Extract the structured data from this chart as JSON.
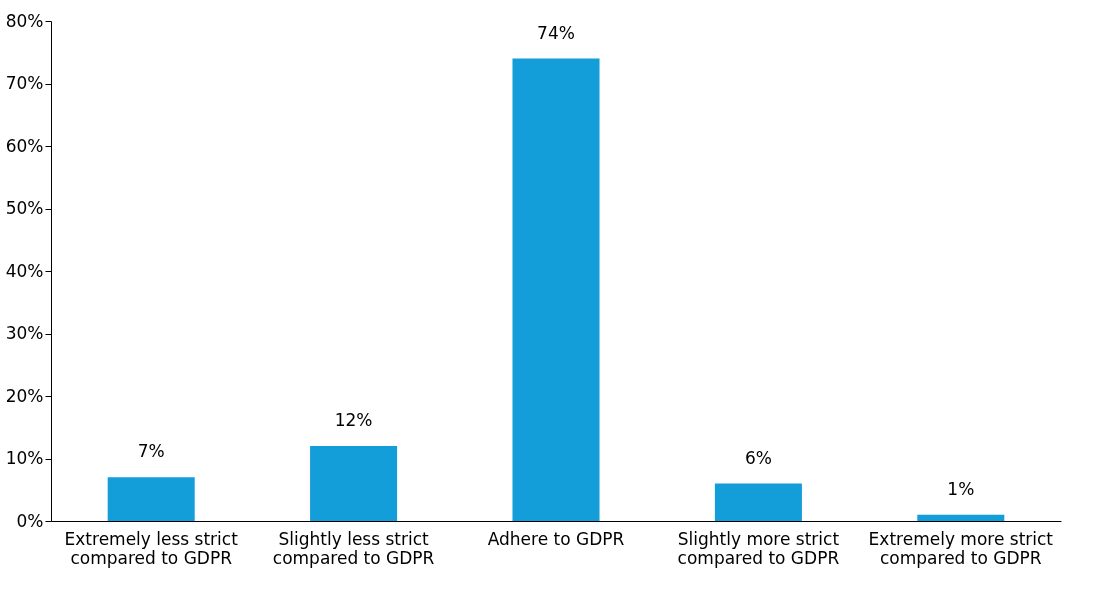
{
  "chart_data": {
    "type": "bar",
    "categories": [
      "Extremely less strict compared to GDPR",
      "Slightly less strict compared to GDPR",
      "Adhere to GDPR",
      "Slightly more strict compared to GDPR",
      "Extremely more strict compared to GDPR"
    ],
    "values": [
      7,
      12,
      74,
      6,
      1
    ],
    "value_labels": [
      "7%",
      "12%",
      "74%",
      "6%",
      "1%"
    ],
    "color": "#139dd9",
    "ylim": [
      0,
      80
    ],
    "yticks": [
      {
        "value": 0,
        "label": "0%"
      },
      {
        "value": 10,
        "label": "10%"
      },
      {
        "value": 20,
        "label": "20%"
      },
      {
        "value": 30,
        "label": "30%"
      },
      {
        "value": 40,
        "label": "40%"
      },
      {
        "value": 50,
        "label": "50%"
      },
      {
        "value": 60,
        "label": "60%"
      },
      {
        "value": 70,
        "label": "70%"
      },
      {
        "value": 80,
        "label": "80%"
      }
    ],
    "grid": false
  }
}
